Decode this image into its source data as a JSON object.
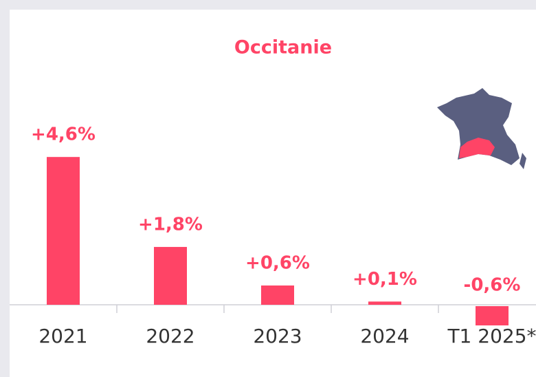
{
  "chart_data": {
    "type": "bar",
    "title": "Occitanie",
    "categories": [
      "2021",
      "2022",
      "2023",
      "2024",
      "T1 2025*"
    ],
    "values": [
      4.6,
      1.8,
      0.6,
      0.1,
      -0.6
    ],
    "value_labels": [
      "+4,6%",
      "+1,8%",
      "+0,6%",
      "+0,1%",
      "-0,6%"
    ],
    "color": "#ff4466"
  }
}
